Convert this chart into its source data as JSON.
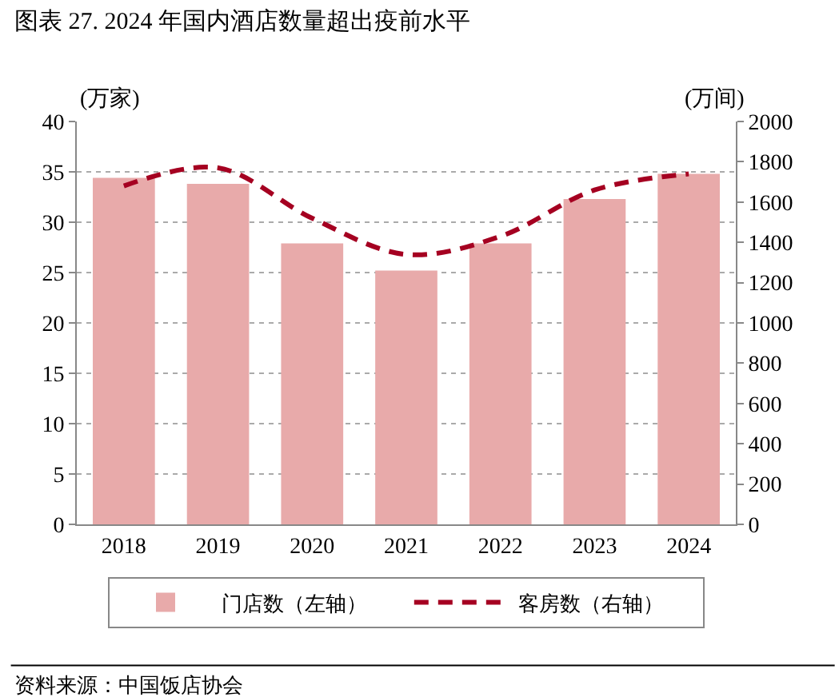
{
  "chart_data": {
    "type": "bar",
    "title": "图表 27. 2024 年国内酒店数量超出疫前水平",
    "categories": [
      "2018",
      "2019",
      "2020",
      "2021",
      "2022",
      "2023",
      "2024"
    ],
    "series": [
      {
        "name": "门店数（左轴）",
        "color": "#e8aaaa",
        "values": [
          34.4,
          33.8,
          27.9,
          25.2,
          27.9,
          32.3,
          34.8
        ]
      },
      {
        "name": "客房数（右轴）",
        "type": "line",
        "axis": "y2",
        "color": "#a50021",
        "line_style": "dashed",
        "values": [
          1680,
          1770,
          1520,
          1340,
          1430,
          1660,
          1740
        ]
      }
    ],
    "ylabel": "(万家)",
    "y2label": "(万间)",
    "ylim": [
      0,
      40
    ],
    "yticks": [
      0,
      5,
      10,
      15,
      20,
      25,
      30,
      35,
      40
    ],
    "y2lim": [
      0,
      2000
    ],
    "y2ticks": [
      0,
      200,
      400,
      600,
      800,
      1000,
      1200,
      1400,
      1600,
      1800,
      2000
    ],
    "grid": "y",
    "legend": "bottom",
    "annotations": [
      "资料来源：中国饭店协会"
    ]
  }
}
